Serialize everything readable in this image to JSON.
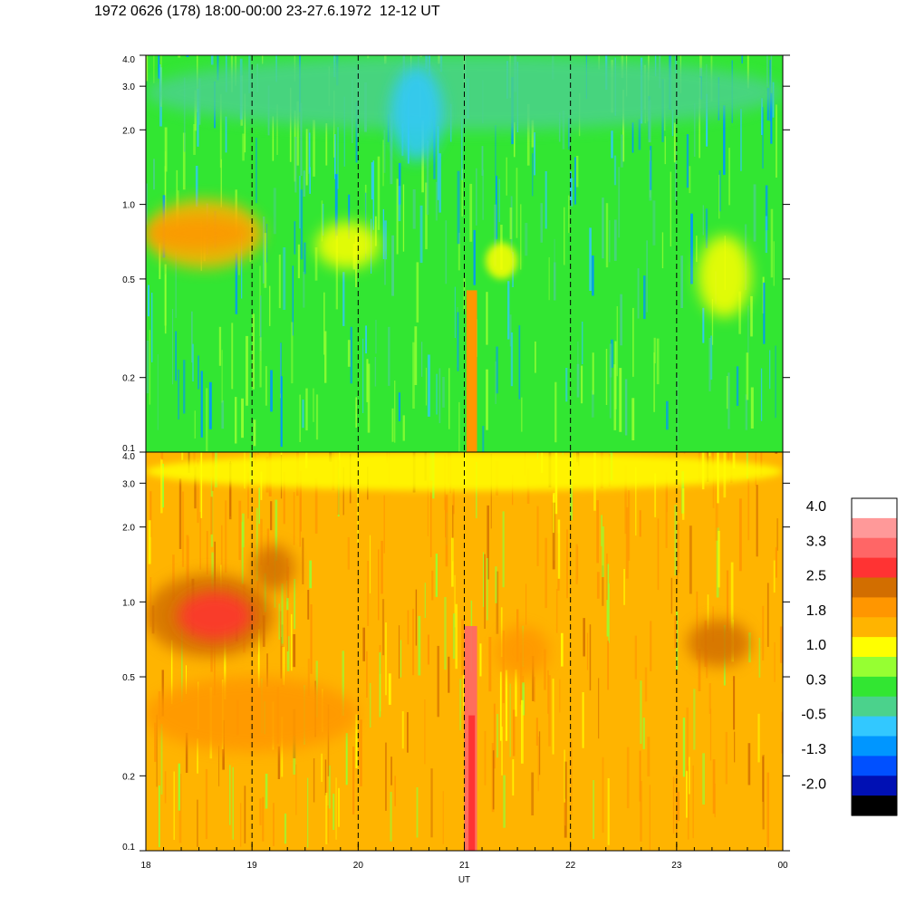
{
  "title": "1972 0626 (178) 18:00-00:00 23-27.6.1972  12-12 UT",
  "chart_data": [
    {
      "type": "heatmap",
      "panel": "upper",
      "x_ticks": [
        "18",
        "19",
        "20",
        "21",
        "22",
        "23",
        "00"
      ],
      "y_ticks": [
        "0.1",
        "0.2",
        "0.5",
        "1.0",
        "2.0",
        "3.0",
        "4.0"
      ],
      "y_scale": "log",
      "ylim": [
        0.1,
        4.0
      ],
      "vertical_dashed_lines_at": [
        "19",
        "20",
        "21",
        "22",
        "23"
      ],
      "dominant_levels": [
        "0.3",
        "1.0"
      ]
    },
    {
      "type": "heatmap",
      "panel": "lower",
      "x_ticks": [
        "18",
        "19",
        "20",
        "21",
        "22",
        "23",
        "00"
      ],
      "y_ticks": [
        "0.1",
        "0.2",
        "0.5",
        "1.0",
        "2.0",
        "3.0",
        "4.0"
      ],
      "y_scale": "log",
      "ylim": [
        0.1,
        4.0
      ],
      "xlabel": "UT",
      "vertical_dashed_lines_at": [
        "19",
        "20",
        "21",
        "22",
        "23"
      ],
      "dominant_levels": [
        "1.0",
        "1.8"
      ]
    }
  ],
  "colorbar": {
    "labels": [
      "4.0",
      "3.3",
      "2.5",
      "1.8",
      "1.0",
      "0.3",
      "-0.5",
      "-1.3",
      "-2.0"
    ],
    "colors": [
      "#ffffff",
      "#ff9999",
      "#ff6666",
      "#ff3333",
      "#d26e00",
      "#ff9600",
      "#ffb400",
      "#ffff00",
      "#96ff32",
      "#32e632",
      "#4bd28c",
      "#32c8ff",
      "#0096ff",
      "#0050ff",
      "#0010b4",
      "#000000"
    ]
  },
  "palette": {
    "upper_base": "#32e632",
    "upper_cool": "#4bd28c",
    "upper_blue": "#32c8ff",
    "upper_feature": "#ffb400",
    "lower_base": "#ffb400",
    "lower_hot": "#ff3333",
    "lower_mid": "#ff9600",
    "lower_yellow": "#ffff00"
  }
}
